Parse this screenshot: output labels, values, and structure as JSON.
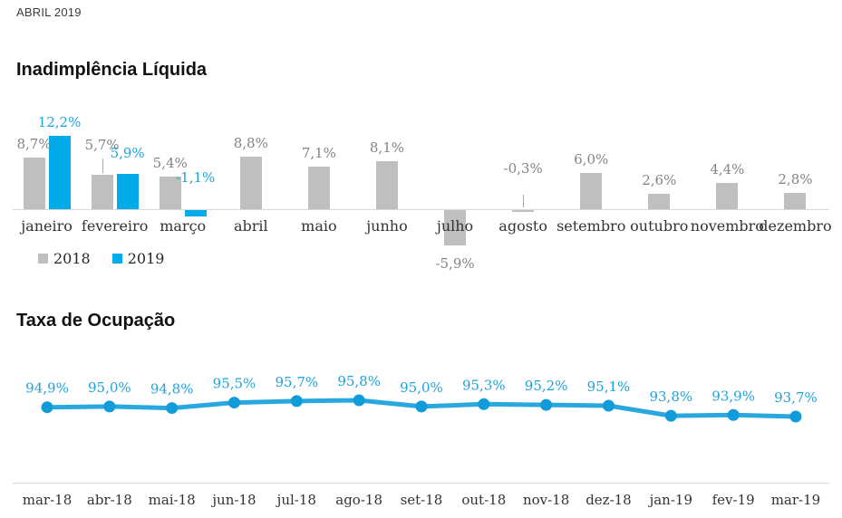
{
  "page": {
    "subtitle": "ABRIL 2019"
  },
  "charts": {
    "inadimplencia_title": "Inadimplência Líquida",
    "ocupacao_title": "Taxa de Ocupação"
  },
  "colors": {
    "bar_gray": "#bfbfbf",
    "bar_blue": "#00abea",
    "line_blue": "#29a8df",
    "marker_blue": "#129bd9",
    "value_label_gray": "#848484",
    "value_label_blue": "#1fa3db",
    "axis_gray": "#d9d9d9"
  },
  "chart_data": [
    {
      "type": "bar",
      "title": "Inadimplência Líquida",
      "categories": [
        "janeiro",
        "fevereiro",
        "março",
        "abril",
        "maio",
        "junho",
        "julho",
        "agosto",
        "setembro",
        "outubro",
        "novembro",
        "dezembro"
      ],
      "series": [
        {
          "name": "2018",
          "color": "#bfbfbf",
          "values": [
            8.7,
            5.7,
            5.4,
            8.8,
            7.1,
            8.1,
            -5.9,
            -0.3,
            6.0,
            2.6,
            4.4,
            2.8
          ],
          "labels": [
            "8,7%",
            "5,7%",
            "5,4%",
            "8,8%",
            "7,1%",
            "8,1%",
            "-5,9%",
            "-0,3%",
            "6,0%",
            "2,6%",
            "4,4%",
            "2,8%"
          ]
        },
        {
          "name": "2019",
          "color": "#00abea",
          "values": [
            12.2,
            5.9,
            -1.1,
            null,
            null,
            null,
            null,
            null,
            null,
            null,
            null,
            null
          ],
          "labels": [
            "12,2%",
            "5,9%",
            "-1,1%",
            null,
            null,
            null,
            null,
            null,
            null,
            null,
            null,
            null
          ]
        }
      ],
      "ylim": [
        -6.5,
        13
      ],
      "grid": false,
      "legend_position": "bottom-left",
      "legend": [
        "2018",
        "2019"
      ]
    },
    {
      "type": "line",
      "title": "Taxa de Ocupação",
      "categories": [
        "mar-18",
        "abr-18",
        "mai-18",
        "jun-18",
        "jul-18",
        "ago-18",
        "set-18",
        "out-18",
        "nov-18",
        "dez-18",
        "jan-19",
        "fev-19",
        "mar-19"
      ],
      "values": [
        94.9,
        95.0,
        94.8,
        95.5,
        95.7,
        95.8,
        95.0,
        95.3,
        95.2,
        95.1,
        93.8,
        93.9,
        93.7
      ],
      "labels": [
        "94,9%",
        "95,0%",
        "94,8%",
        "95,5%",
        "95,7%",
        "95,8%",
        "95,0%",
        "95,3%",
        "95,2%",
        "95,1%",
        "93,8%",
        "93,9%",
        "93,7%"
      ],
      "ylim": [
        93.5,
        96.2
      ],
      "grid": false,
      "legend_position": "none"
    }
  ]
}
